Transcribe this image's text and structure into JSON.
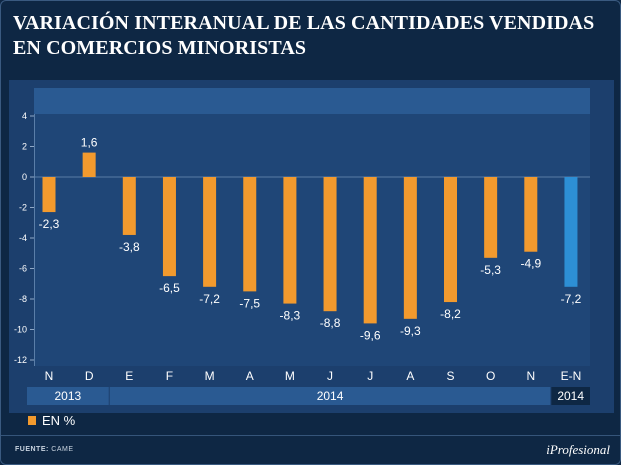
{
  "title": "VARIACIÓN INTERANUAL DE LAS CANTIDADES VENDIDAS EN COMERCIOS MINORISTAS",
  "footer": {
    "source_label": "FUENTE:",
    "source_value": "CAME",
    "brand": "iProfesional"
  },
  "colors": {
    "bar": "#f29a2e",
    "highlight_bar": "#2d8fd5",
    "panel": "#1c3f6d",
    "background": "#0e2744"
  },
  "chart_data": {
    "type": "bar",
    "title": "VARIACIÓN INTERANUAL DE LAS CANTIDADES VENDIDAS EN COMERCIOS MINORISTAS",
    "categories": [
      "N",
      "D",
      "E",
      "F",
      "M",
      "A",
      "M",
      "J",
      "J",
      "A",
      "S",
      "O",
      "N",
      "E-N"
    ],
    "values": [
      -2.3,
      1.6,
      -3.8,
      -6.5,
      -7.2,
      -7.5,
      -8.3,
      -8.8,
      -9.6,
      -9.3,
      -8.2,
      -5.3,
      -4.9,
      -7.2
    ],
    "value_labels": [
      "-2,3",
      "1,6",
      "-3,8",
      "-6,5",
      "-7,2",
      "-7,5",
      "-8,3",
      "-8,8",
      "-9,6",
      "-9,3",
      "-8,2",
      "-5,3",
      "-4,9",
      "-7,2"
    ],
    "highlight_index": 13,
    "year_groups": [
      {
        "label": "2013",
        "start": 0,
        "end": 1
      },
      {
        "label": "2014",
        "start": 2,
        "end": 12
      },
      {
        "label": "2014",
        "start": 13,
        "end": 13
      }
    ],
    "yticks": [
      4,
      2,
      0,
      -2,
      -4,
      -6,
      -8,
      -10,
      -12
    ],
    "ylim": [
      -12,
      4
    ],
    "legend": "EN %",
    "xlabel": "",
    "ylabel": ""
  }
}
